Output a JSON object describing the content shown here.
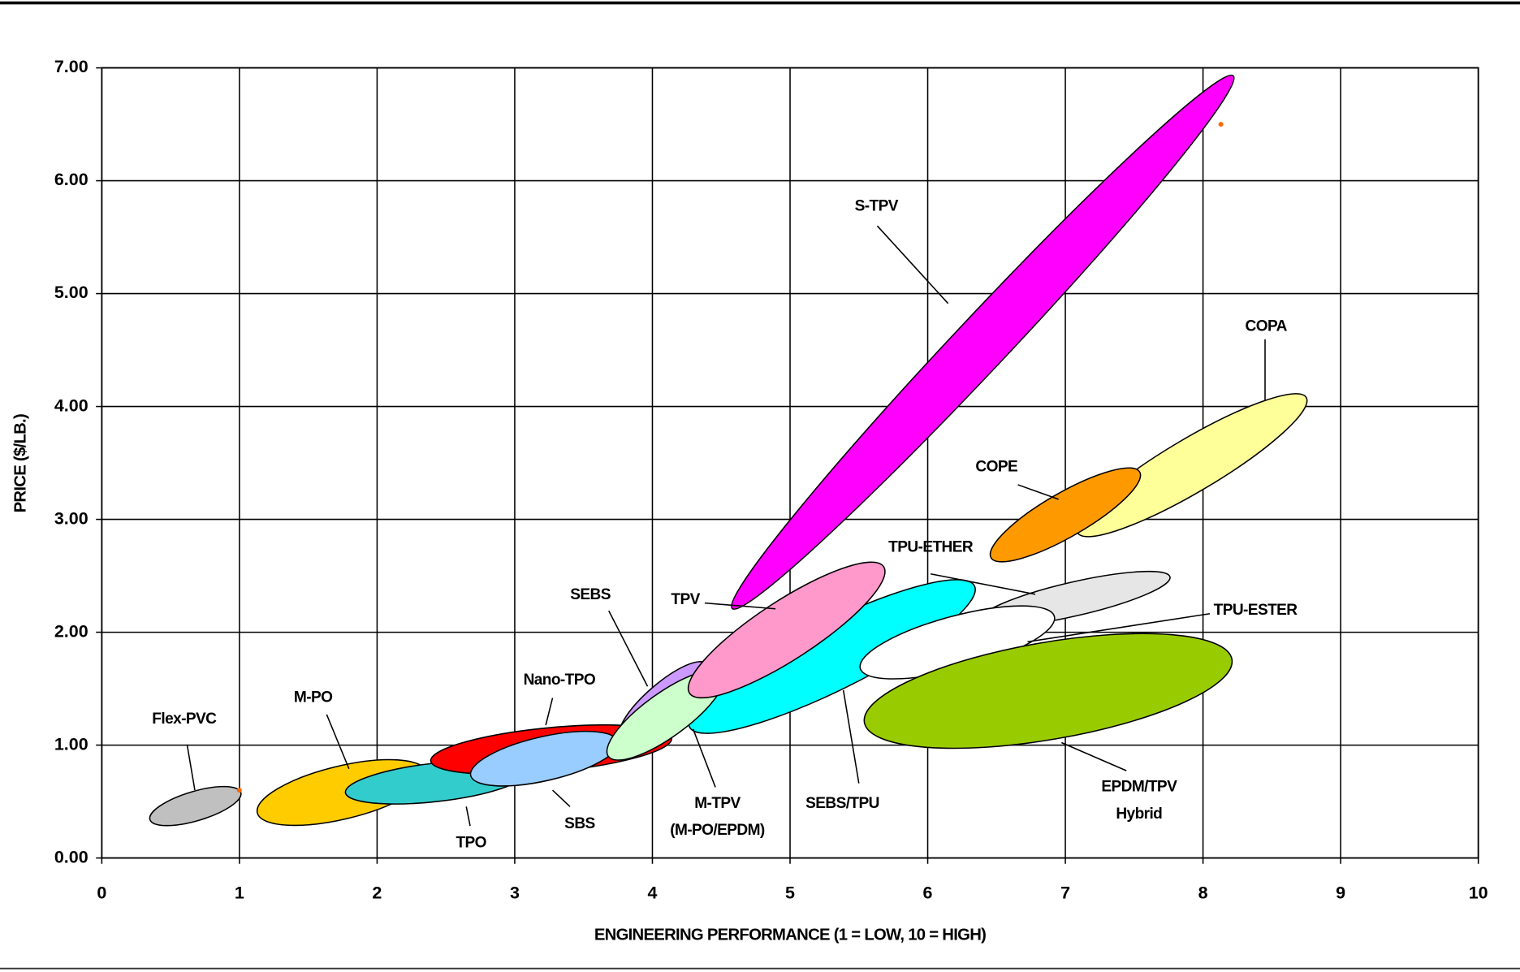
{
  "chart_data": {
    "type": "ellipse-region",
    "xlabel": "ENGINEERING PERFORMANCE (1 = LOW, 10 = HIGH)",
    "ylabel": "PRICE ($/LB.)",
    "xlim": [
      0,
      10
    ],
    "xticks": [
      0,
      1,
      2,
      3,
      4,
      5,
      6,
      7,
      8,
      9,
      10
    ],
    "ylim": [
      0,
      7
    ],
    "yticks": [
      {
        "value": 0,
        "label": "0.00"
      },
      {
        "value": 1,
        "label": "1.00"
      },
      {
        "value": 2,
        "label": "2.00"
      },
      {
        "value": 3,
        "label": "3.00"
      },
      {
        "value": 4,
        "label": "4.00"
      },
      {
        "value": 5,
        "label": "5.00"
      },
      {
        "value": 6,
        "label": "6.00"
      },
      {
        "value": 7,
        "label": "7.00"
      }
    ],
    "grid": true,
    "regions": [
      {
        "label": [
          "S-TPV"
        ],
        "color": "#ff00ff",
        "x0": 4.58,
        "y0": 2.21,
        "x1": 8.22,
        "y1": 6.93,
        "minor": 0.47
      },
      {
        "label": [
          "COPA"
        ],
        "color": "#ffff99",
        "x0": 7.09,
        "y0": 2.88,
        "x1": 8.75,
        "y1": 4.08,
        "minor": 0.47
      },
      {
        "label": [
          "COPE"
        ],
        "color": "#ff9900",
        "x0": 6.46,
        "y0": 2.66,
        "x1": 7.54,
        "y1": 3.42,
        "minor": 0.39
      },
      {
        "label": [
          "TPU-ETHER"
        ],
        "color": "#e6e6e6",
        "x0": 6.37,
        "y0": 2.1,
        "x1": 7.76,
        "y1": 2.49,
        "minor": 0.3
      },
      {
        "label": [
          "SEBS/TPU"
        ],
        "color": "#00ffff",
        "x0": 4.27,
        "y0": 1.16,
        "x1": 6.34,
        "y1": 2.41,
        "minor": 0.6
      },
      {
        "label": [
          "TPU-ESTER"
        ],
        "color": "#ffffff",
        "x0": 5.51,
        "y0": 1.68,
        "x1": 6.92,
        "y1": 2.14,
        "minor": 0.47
      },
      {
        "label": [
          "EPDM/TPV",
          "Hybrid"
        ],
        "color": "#99cc00",
        "x0": 5.54,
        "y0": 1.2,
        "x1": 8.21,
        "y1": 1.76,
        "minor": 0.86
      },
      {
        "label": [
          "Flex-PVC"
        ],
        "color": "#c0c0c0",
        "x0": 0.35,
        "y0": 0.34,
        "x1": 1.01,
        "y1": 0.58,
        "minor": 0.26
      },
      {
        "label": [
          "M-PO"
        ],
        "color": "#ffcc00",
        "x0": 1.13,
        "y0": 0.4,
        "x1": 2.36,
        "y1": 0.76,
        "minor": 0.47
      },
      {
        "label": [
          "TPO"
        ],
        "color": "#33cccc",
        "x0": 1.77,
        "y0": 0.58,
        "x1": 3.08,
        "y1": 0.76,
        "minor": 0.34
      },
      {
        "label": [
          "Nano-TPO"
        ],
        "color": "#ff0000",
        "x0": 2.39,
        "y0": 0.86,
        "x1": 4.14,
        "y1": 1.06,
        "minor": 0.39
      },
      {
        "label": [
          "SBS"
        ],
        "color": "#99ccff",
        "x0": 2.68,
        "y0": 0.73,
        "x1": 3.75,
        "y1": 1.03,
        "minor": 0.39
      },
      {
        "label": [
          "SEBS"
        ],
        "color": "#cc99ff",
        "x0": 3.77,
        "y0": 1.07,
        "x1": 4.39,
        "y1": 1.72,
        "minor": 0.3
      },
      {
        "label": [
          "M-TPV",
          "(M-PO/EPDM)"
        ],
        "color": "#ccffcc",
        "x0": 3.68,
        "y0": 0.9,
        "x1": 4.51,
        "y1": 1.63,
        "minor": 0.39
      },
      {
        "label": [
          "TPV"
        ],
        "color": "#ff99cc",
        "x0": 4.27,
        "y0": 1.46,
        "x1": 5.68,
        "y1": 2.58,
        "minor": 0.52
      }
    ],
    "points": {
      "x": [
        1,
        8.13
      ],
      "y": [
        0.6,
        6.5
      ],
      "color": "#ff6600"
    }
  }
}
